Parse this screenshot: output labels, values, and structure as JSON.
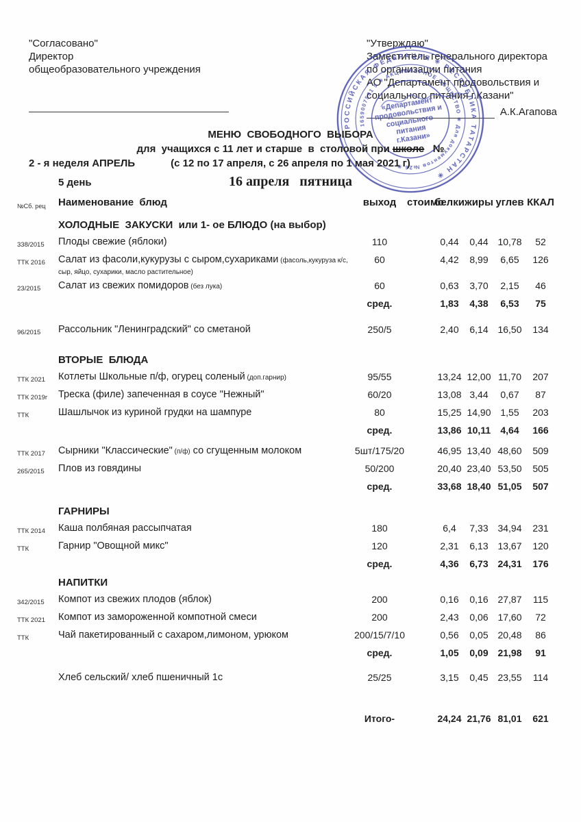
{
  "colors": {
    "stamp_blue": "#3b41a6",
    "ink": "#1e1e1e"
  },
  "approval_left": {
    "line1": "\"Согласовано\"",
    "line2": "Директор",
    "line3": "общеобразовательного учреждения"
  },
  "approval_right": {
    "line1": "\"Утверждаю\"",
    "line2": "Заместитель генерального директора",
    "line3": "по организации питания",
    "line4": "АО \"Департамент продовольствия и",
    "line5": "социального питания г.Казани\"",
    "signer": "А.К.Агапова"
  },
  "stamp": {
    "ring_outer": "РОССИЙСКАЯ ФЕДЕРАЦИЯ ✳ РЕСПУБЛИКА ТАТАРСТАН ✳",
    "ring_inner": "1659007591 9 ✳ АКЦИОНЕРНОЕ ОБЩЕСТВО ✳ Для документов №26 ✳",
    "center1": "«Департамент",
    "center2": "продовольствия и",
    "center3": "социального",
    "center4": "питания",
    "center5": "г.Казани»"
  },
  "menu": {
    "title": "МЕНЮ  СВОБОДНОГО  ВЫБОРА",
    "subtitle_pre": "для  учащихся с 11 лет и старше  в  столовой при ",
    "subtitle_struck": "школе",
    "subtitle_post": "   №",
    "week": "2 - я неделя АПРЕЛЬ",
    "dates": "(с 12 по 17 апреля, с 26 апреля по 1 мая 2021 г)",
    "day": "5 день",
    "weekday": "16 апреля   пятница"
  },
  "table": {
    "header": {
      "num": "№Сб. рец",
      "name": "Наименование  блюд",
      "out": "выход",
      "cost": "стоимо",
      "protein": "белки",
      "fat": "жиры",
      "carbs": "углев",
      "kcal": "ККАЛ"
    },
    "rows": [
      {
        "type": "section",
        "label": "ХОЛОДНЫЕ  ЗАКУСКИ  или 1- ое БЛЮДО (на выбор)"
      },
      {
        "type": "item",
        "num": "338/2015",
        "name": "Плоды свежие (яблоки)",
        "out": "110",
        "p": "0,44",
        "f": "0,44",
        "c": "10,78",
        "k": "52"
      },
      {
        "type": "item",
        "num": "ТТК 2016",
        "name": "Салат из фасоли,кукурузы с сыром,сухариками",
        "note": " (фасоль,кукуруза к/с,",
        "name2": "сыр, яйцо, сухарики, масло растительное)",
        "out": "60",
        "p": "4,42",
        "f": "8,99",
        "c": "6,65",
        "k": "126"
      },
      {
        "type": "item",
        "num": "23/2015",
        "name": "Салат из свежих помидоров",
        "note": " (без лука)",
        "out": "60",
        "p": "0,63",
        "f": "3,70",
        "c": "2,15",
        "k": "46"
      },
      {
        "type": "avg",
        "label": "сред.",
        "p": "1,83",
        "f": "4,38",
        "c": "6,53",
        "k": "75"
      },
      {
        "type": "gap",
        "h": 16
      },
      {
        "type": "item",
        "num": "96/2015",
        "name": "Рассольник \"Ленинградский\" со сметаной",
        "out": "250/5",
        "p": "2,40",
        "f": "6,14",
        "c": "16,50",
        "k": "134"
      },
      {
        "type": "gap",
        "h": 13
      },
      {
        "type": "section",
        "label": "ВТОРЫЕ  БЛЮДА"
      },
      {
        "type": "item",
        "num": "ТТК 2021",
        "name": "Котлеты Школьные п/ф, огурец соленый",
        "note": " (доп.гарнир)",
        "out": "95/55",
        "p": "13,24",
        "f": "12,00",
        "c": "11,70",
        "k": "207"
      },
      {
        "type": "item",
        "num": "ТТК 2019г",
        "name": "Треска (филе) запеченная в соусе \"Нежный\"",
        "out": "60/20",
        "p": "13,08",
        "f": "3,44",
        "c": "0,67",
        "k": "87"
      },
      {
        "type": "item",
        "num": "ТТК",
        "name": "Шашлычок из куриной грудки на шампуре",
        "out": "80",
        "p": "15,25",
        "f": "14,90",
        "c": "1,55",
        "k": "203"
      },
      {
        "type": "avg",
        "label": "сред.",
        "p": "13,86",
        "f": "10,11",
        "c": "4,64",
        "k": "166"
      },
      {
        "type": "gap",
        "h": 8
      },
      {
        "type": "item",
        "num": "ТТК 2017",
        "name": "Сырники \"Классические\"",
        "note": " (п/ф)",
        "name_after": " со сгущенным молоком",
        "out": "5шт/175/20",
        "p": "46,95",
        "f": "13,40",
        "c": "48,60",
        "k": "509"
      },
      {
        "type": "item",
        "num": "265/2015",
        "name": "Плов из говядины",
        "out": "50/200",
        "p": "20,40",
        "f": "23,40",
        "c": "53,50",
        "k": "505"
      },
      {
        "type": "avg",
        "label": "сред.",
        "p": "33,68",
        "f": "18,40",
        "c": "51,05",
        "k": "507"
      },
      {
        "type": "gap",
        "h": 9
      },
      {
        "type": "section",
        "label": "ГАРНИРЫ"
      },
      {
        "type": "item",
        "num": "ТТК 2014",
        "name": "Каша полбяная рассыпчатая",
        "out": "180",
        "p": "6,4",
        "f": "7,33",
        "c": "34,94",
        "k": "231"
      },
      {
        "type": "item",
        "num": "ТТК",
        "name": "Гарнир \"Овощной микс\"",
        "out": "120",
        "p": "2,31",
        "f": "6,13",
        "c": "13,67",
        "k": "120"
      },
      {
        "type": "avg",
        "label": "сред.",
        "p": "4,36",
        "f": "6,73",
        "c": "24,31",
        "k": "176"
      },
      {
        "type": "section",
        "label": "НАПИТКИ"
      },
      {
        "type": "item",
        "num": "342/2015",
        "name": "Компот из свежих плодов (яблок)",
        "out": "200",
        "p": "0,16",
        "f": "0,16",
        "c": "27,87",
        "k": "115"
      },
      {
        "type": "item",
        "num": "ТТК 2021",
        "name": "Компот из замороженной компотной смеси",
        "out": "200",
        "p": "2,43",
        "f": "0,06",
        "c": "17,60",
        "k": "72"
      },
      {
        "type": "item",
        "num": "ТТК",
        "name": "Чай пакетированный с сахаром,лимоном, урюком",
        "out": "200/15/7/10",
        "p": "0,56",
        "f": "0,05",
        "c": "20,48",
        "k": "86"
      },
      {
        "type": "avg",
        "label": "сред.",
        "p": "1,05",
        "f": "0,09",
        "c": "21,98",
        "k": "91"
      },
      {
        "type": "gap",
        "h": 14
      },
      {
        "type": "item",
        "num": "",
        "name": "Хлеб сельский/ хлеб пшеничный 1с",
        "out": "25/25",
        "p": "3,15",
        "f": "0,45",
        "c": "23,55",
        "k": "114"
      },
      {
        "type": "gap",
        "h": 38
      },
      {
        "type": "total",
        "label": "Итого-",
        "p": "24,24",
        "f": "21,76",
        "c": "81,01",
        "k": "621"
      }
    ]
  }
}
